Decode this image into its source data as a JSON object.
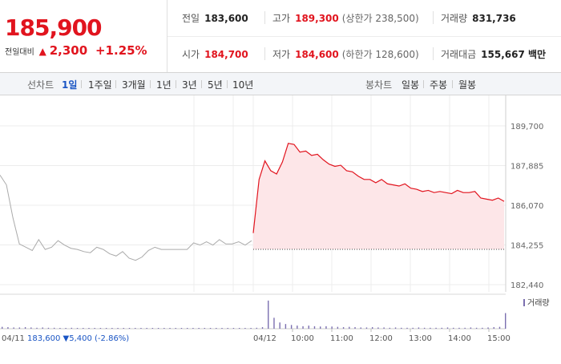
{
  "summary": {
    "price": "185,900",
    "change_label": "전일대비",
    "change_icon": "up-triangle-icon",
    "change_amount": "2,300",
    "change_percent": "+1.25%",
    "prev_close_label": "전일",
    "prev_close": "183,600",
    "high_label": "고가",
    "high": "189,300",
    "upper_limit": "(상한가 238,500)",
    "volume_label": "거래량",
    "volume": "831,736",
    "open_label": "시가",
    "open": "184,700",
    "low_label": "저가",
    "low": "184,600",
    "lower_limit": "(하한가 128,600)",
    "amount_label": "거래대금",
    "amount": "155,667 백만"
  },
  "toolbar": {
    "line_chart_label": "선차트",
    "line_periods": [
      "1일",
      "1주일",
      "3개월",
      "1년",
      "3년",
      "5년",
      "10년"
    ],
    "active_period": "1일",
    "candle_chart_label": "봉차트",
    "candle_periods": [
      "일봉",
      "주봉",
      "월봉"
    ]
  },
  "colors": {
    "up": "#e1141e",
    "down": "#1a55c4",
    "prev_line": "#aaaaaa",
    "volume": "#7b6fb0"
  },
  "chart_data": {
    "type": "line",
    "y_ticks": [
      "189,700",
      "187,885",
      "186,070",
      "184,255",
      "182,440"
    ],
    "ylim": [
      182440,
      189700
    ],
    "x_ticks": [
      "04/12",
      "10:00",
      "11:00",
      "12:00",
      "13:00",
      "14:00",
      "15:00"
    ],
    "prev_day_label": "04/11",
    "prev_day_close": "183,600",
    "prev_day_change": "▼5,400 (-2.86%)",
    "volume_legend": "거래량",
    "grid": true,
    "series": [
      {
        "values": [
          187450,
          187000,
          185500,
          184300,
          184150,
          184000,
          184500,
          184050,
          184150,
          184450,
          184250,
          184100,
          184050,
          183950,
          183900,
          184150,
          184050,
          183850,
          183750,
          183950,
          183650,
          183550,
          183700,
          184000,
          184150,
          184050,
          184050,
          184050,
          184050,
          184050,
          184350,
          184250,
          184400,
          184250,
          184500,
          184300,
          184300,
          184400,
          184250,
          184450
        ]
      },
      {
        "values": [
          184800,
          187250,
          188100,
          187650,
          187500,
          188050,
          188900,
          188850,
          188500,
          188550,
          188350,
          188400,
          188150,
          187950,
          187850,
          187900,
          187650,
          187600,
          187400,
          187250,
          187250,
          187100,
          187250,
          187050,
          187000,
          186950,
          187050,
          186850,
          186800,
          186700,
          186750,
          186650,
          186700,
          186650,
          186600,
          186750,
          186650,
          186650,
          186700,
          186400,
          186350,
          186300,
          186400,
          186250
        ]
      }
    ],
    "volume_values": [
      0.06,
      0.05,
      0.04,
      0.04,
      0.05,
      0.04,
      0.03,
      0.04,
      0.03,
      0.03,
      0.02,
      0.02,
      0.03,
      0.02,
      0.02,
      0.02,
      0.02,
      0.02,
      0.02,
      0.02,
      0.02,
      0.02,
      0.02,
      0.02,
      0.02,
      0.02,
      0.02,
      0.02,
      0.02,
      0.02,
      0.02,
      0.02,
      0.02,
      0.02,
      0.02,
      0.02,
      0.02,
      0.02,
      0.02,
      0.02,
      0.02,
      0.02,
      0.02,
      0.02,
      0.03,
      0.05,
      0.9,
      0.35,
      0.2,
      0.15,
      0.12,
      0.1,
      0.08,
      0.1,
      0.08,
      0.07,
      0.08,
      0.07,
      0.06,
      0.05,
      0.06,
      0.05,
      0.04,
      0.04,
      0.05,
      0.04,
      0.04,
      0.03,
      0.04,
      0.03,
      0.03,
      0.03,
      0.04,
      0.03,
      0.03,
      0.03,
      0.03,
      0.04,
      0.03,
      0.03,
      0.03,
      0.04,
      0.03,
      0.03,
      0.04,
      0.05,
      0.06,
      0.5
    ]
  }
}
